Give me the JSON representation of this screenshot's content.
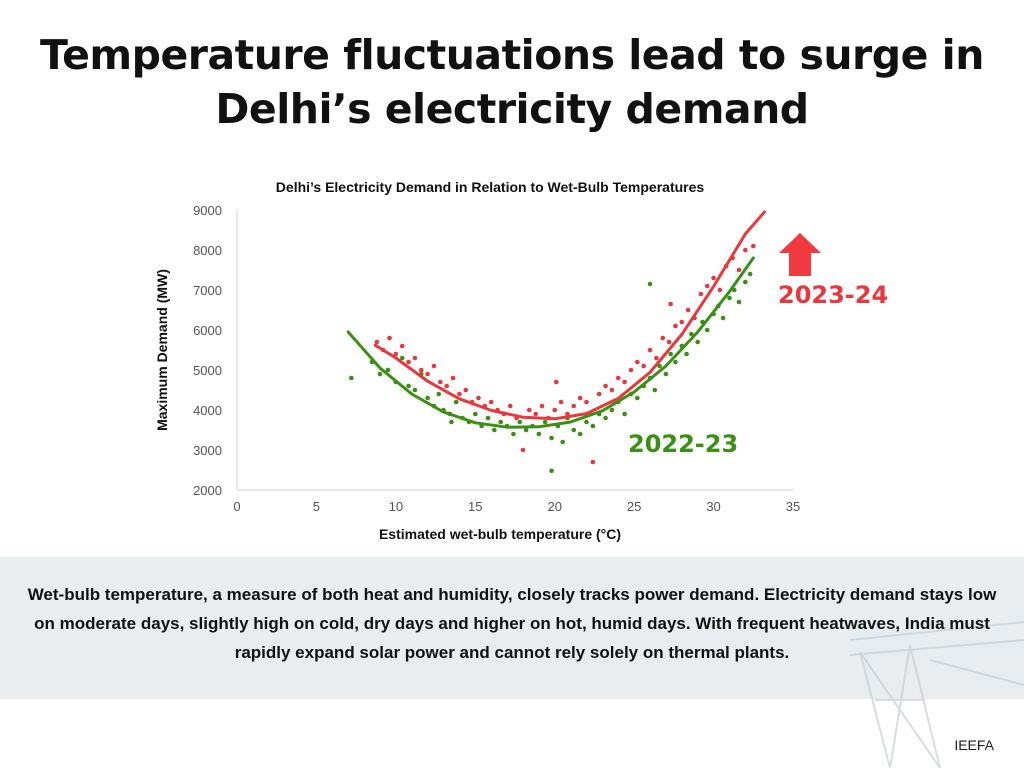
{
  "headline": {
    "line1": "Temperature fluctuations lead to surge in",
    "line2": "Delhi’s electricity demand"
  },
  "caption": "Wet-bulb temperature, a measure of both heat and humidity, closely tracks power demand. Electricity demand stays low on moderate days, slightly high on cold, dry days and higher on hot, humid days. With frequent heatwaves, India must rapidly expand solar power and cannot rely solely on thermal plants.",
  "brand": "IEEFA",
  "colors": {
    "red": "#e8383d",
    "green": "#3a8f14",
    "arrow": "#f03a3f",
    "band": "#e9edf0"
  },
  "chart_data": {
    "type": "scatter",
    "title": "Delhi’s Electricity Demand in Relation to Wet-Bulb Temperatures",
    "xlabel": "Estimated wet-bulb temperature (°C)",
    "ylabel": "Maximum Demand (MW)",
    "xlim": [
      0,
      35
    ],
    "ylim": [
      2000,
      9000
    ],
    "xticks": [
      0,
      5,
      10,
      15,
      20,
      25,
      30,
      35
    ],
    "yticks": [
      2000,
      3000,
      4000,
      5000,
      6000,
      7000,
      8000,
      9000
    ],
    "grid": false,
    "series": [
      {
        "name": "2022-23",
        "color": "#3a8f14",
        "trend_x": [
          7,
          9,
          11,
          13,
          15,
          17,
          19,
          21,
          23,
          25,
          27,
          29,
          31,
          32.5
        ],
        "trend_y": [
          5950,
          5050,
          4400,
          3950,
          3680,
          3570,
          3580,
          3700,
          3980,
          4450,
          5100,
          5950,
          6960,
          7800
        ],
        "points": [
          [
            7.2,
            4800
          ],
          [
            8.5,
            5200
          ],
          [
            9,
            4900
          ],
          [
            9.5,
            5000
          ],
          [
            10,
            4700
          ],
          [
            10.4,
            5300
          ],
          [
            10.8,
            4600
          ],
          [
            11.2,
            4500
          ],
          [
            11.6,
            4900
          ],
          [
            12,
            4300
          ],
          [
            12.4,
            4100
          ],
          [
            12.7,
            4400
          ],
          [
            13,
            4000
          ],
          [
            13.4,
            3900
          ],
          [
            13.8,
            4200
          ],
          [
            14.2,
            3800
          ],
          [
            14.6,
            3700
          ],
          [
            15,
            3900
          ],
          [
            15.4,
            3600
          ],
          [
            15.8,
            3800
          ],
          [
            16.2,
            3500
          ],
          [
            16.6,
            3700
          ],
          [
            17,
            3600
          ],
          [
            17.4,
            3400
          ],
          [
            17.8,
            3700
          ],
          [
            18.2,
            3500
          ],
          [
            18.6,
            3600
          ],
          [
            19,
            3400
          ],
          [
            19.4,
            3700
          ],
          [
            19.8,
            3300
          ],
          [
            20.2,
            3600
          ],
          [
            20.5,
            3200
          ],
          [
            20.8,
            3800
          ],
          [
            21.2,
            3500
          ],
          [
            21.6,
            3400
          ],
          [
            22,
            3700
          ],
          [
            22.4,
            3600
          ],
          [
            22.8,
            3900
          ],
          [
            23.2,
            3800
          ],
          [
            23.6,
            4000
          ],
          [
            24,
            4200
          ],
          [
            24.4,
            3900
          ],
          [
            24.8,
            4400
          ],
          [
            25.2,
            4300
          ],
          [
            25.6,
            4600
          ],
          [
            26,
            4800
          ],
          [
            26.3,
            4500
          ],
          [
            26.6,
            5100
          ],
          [
            27,
            4900
          ],
          [
            27.3,
            5400
          ],
          [
            27.6,
            5200
          ],
          [
            28,
            5600
          ],
          [
            28.3,
            5400
          ],
          [
            28.6,
            5900
          ],
          [
            29,
            5700
          ],
          [
            29.3,
            6200
          ],
          [
            29.6,
            6000
          ],
          [
            30,
            6400
          ],
          [
            30.3,
            6600
          ],
          [
            30.6,
            6300
          ],
          [
            31,
            6800
          ],
          [
            31.3,
            7000
          ],
          [
            31.6,
            6700
          ],
          [
            32,
            7200
          ],
          [
            32.3,
            7400
          ],
          [
            26,
            7150
          ],
          [
            19.8,
            2480
          ],
          [
            13.5,
            3700
          ]
        ]
      },
      {
        "name": "2023-24",
        "color": "#e8383d",
        "trend_x": [
          8.7,
          10,
          12,
          14,
          16,
          18,
          20,
          22,
          24,
          26,
          28,
          30,
          32,
          33.2
        ],
        "trend_y": [
          5620,
          5300,
          4720,
          4280,
          3990,
          3820,
          3780,
          3910,
          4290,
          4940,
          5890,
          7090,
          8400,
          8950
        ],
        "points": [
          [
            8.8,
            5700
          ],
          [
            9.2,
            5500
          ],
          [
            9.6,
            5800
          ],
          [
            10,
            5400
          ],
          [
            10.4,
            5600
          ],
          [
            10.8,
            5200
          ],
          [
            11.2,
            5300
          ],
          [
            11.6,
            5000
          ],
          [
            12,
            4900
          ],
          [
            12.4,
            5100
          ],
          [
            12.8,
            4700
          ],
          [
            13.2,
            4600
          ],
          [
            13.6,
            4800
          ],
          [
            14,
            4400
          ],
          [
            14.4,
            4500
          ],
          [
            14.8,
            4200
          ],
          [
            15.2,
            4300
          ],
          [
            15.6,
            4100
          ],
          [
            16,
            4200
          ],
          [
            16.4,
            4000
          ],
          [
            16.8,
            3900
          ],
          [
            17.2,
            4100
          ],
          [
            17.6,
            3800
          ],
          [
            18,
            3000
          ],
          [
            18.4,
            4000
          ],
          [
            18.8,
            3900
          ],
          [
            19.2,
            4100
          ],
          [
            19.6,
            3800
          ],
          [
            20,
            4000
          ],
          [
            20.4,
            4200
          ],
          [
            20.8,
            3900
          ],
          [
            21.2,
            4100
          ],
          [
            21.6,
            4300
          ],
          [
            22,
            4200
          ],
          [
            22.4,
            2700
          ],
          [
            22.8,
            4400
          ],
          [
            23.2,
            4600
          ],
          [
            23.6,
            4500
          ],
          [
            24,
            4800
          ],
          [
            24.4,
            4700
          ],
          [
            24.8,
            5000
          ],
          [
            25.2,
            5200
          ],
          [
            25.6,
            5100
          ],
          [
            26,
            5500
          ],
          [
            26.4,
            5300
          ],
          [
            26.8,
            5800
          ],
          [
            27.2,
            5700
          ],
          [
            27.6,
            6100
          ],
          [
            28,
            6200
          ],
          [
            28.4,
            6500
          ],
          [
            28.8,
            6300
          ],
          [
            29.2,
            6900
          ],
          [
            29.6,
            7100
          ],
          [
            30,
            7300
          ],
          [
            30.4,
            7000
          ],
          [
            30.8,
            7600
          ],
          [
            31.2,
            7800
          ],
          [
            31.6,
            7500
          ],
          [
            32,
            8000
          ],
          [
            32.5,
            8100
          ],
          [
            20.1,
            4700
          ],
          [
            27.3,
            6650
          ]
        ]
      }
    ],
    "annotations": [
      {
        "text": "2023-24",
        "color": "#e8383d",
        "position": "right of red trend end, below up arrow"
      },
      {
        "text": "2022-23",
        "color": "#3a8f14",
        "position": "below green trend on right"
      }
    ]
  }
}
